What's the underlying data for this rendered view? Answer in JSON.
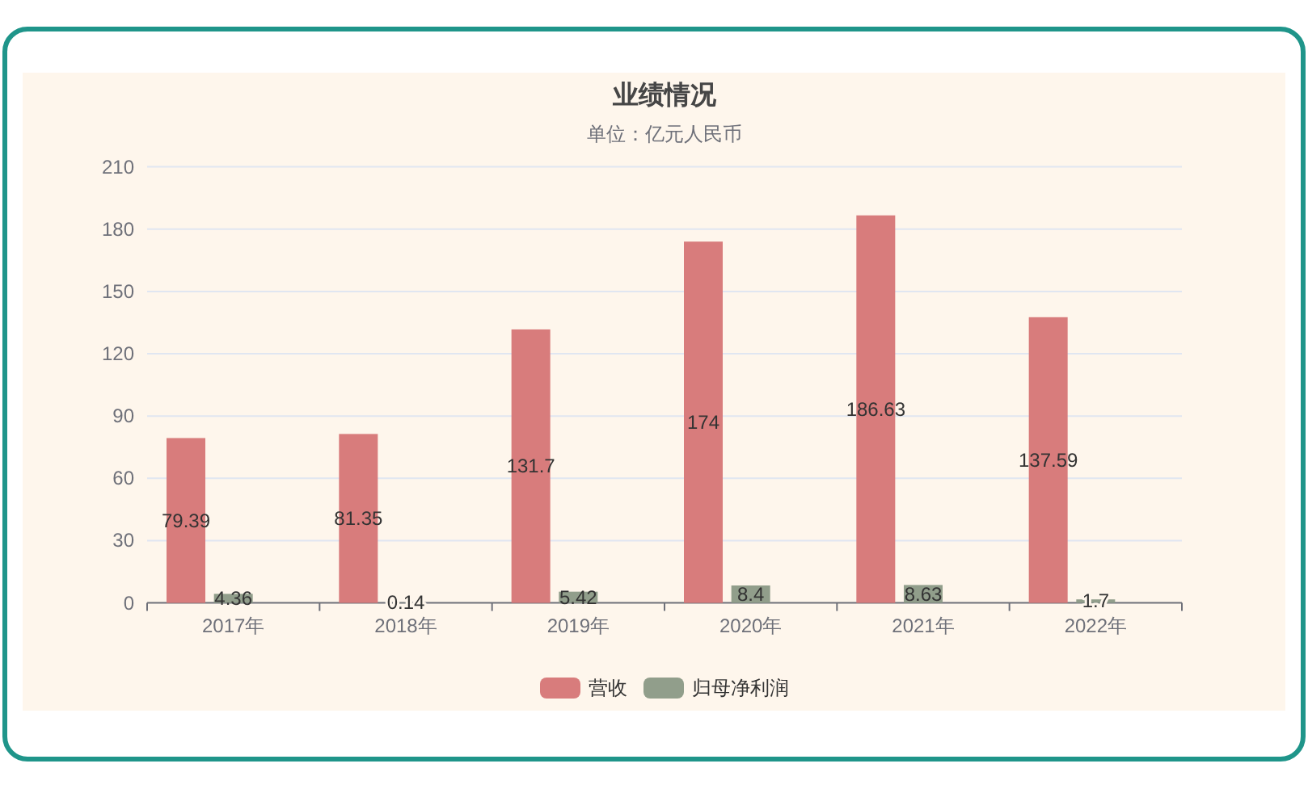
{
  "chart_data": {
    "type": "bar",
    "title": "业绩情况",
    "subtitle": "单位：亿元人民币",
    "categories": [
      "2017年",
      "2018年",
      "2019年",
      "2020年",
      "2021年",
      "2022年"
    ],
    "series": [
      {
        "name": "营收",
        "color": "#d87c7c",
        "values": [
          79.39,
          81.35,
          131.7,
          174,
          186.63,
          137.59
        ]
      },
      {
        "name": "归母净利润",
        "color": "#919e8b",
        "values": [
          4.36,
          0.14,
          5.42,
          8.4,
          8.63,
          1.7
        ]
      }
    ],
    "ylim": [
      0,
      210
    ],
    "yticks": [
      0,
      30,
      60,
      90,
      120,
      150,
      180,
      210
    ],
    "grid": "y",
    "legend": "bottom",
    "data_labels": true
  }
}
